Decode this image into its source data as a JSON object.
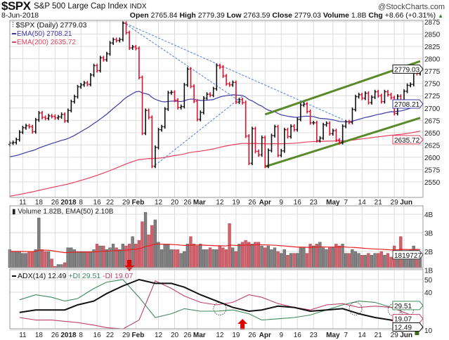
{
  "header": {
    "symbol": "$SPX",
    "name": "S&P 500 Large Cap Index",
    "exchange": "INDX",
    "brand": "@StockCharts.com",
    "date": "8-Jun-2018",
    "open_label": "Open",
    "open": "2765.84",
    "high_label": "High",
    "high": "2779.39",
    "low_label": "Low",
    "low": "2763.59",
    "close_label": "Close",
    "close": "2779.03",
    "volume_label": "Volume",
    "volume": "1.8B",
    "chg_label": "Chg",
    "chg": "+8.66 (+0.31%)",
    "chg_icon": "triangle-up-icon"
  },
  "chart_data": {
    "type": "ohlc",
    "colors": {
      "up": "#111111",
      "down": "#e0112b",
      "ema50": "#3b3ba8",
      "ema200": "#e84060",
      "trend_green": "#5a8a2a",
      "trend_blue": "#4a7fd8",
      "plus_di": "#3d8a5a",
      "minus_di": "#c0406a",
      "adx": "#111111",
      "vol_up": "#808080",
      "vol_down": "#d0606a"
    },
    "legend": {
      "price": "$SPX (Daily) 2779.03",
      "ema50": "EMA(50) 2708.21",
      "ema200": "EMA(200) 2635.72",
      "volume": "Volume 1.82B, EMA(50) 2.10B",
      "adx": "ADX(14) 12.49",
      "plus_di": "+DI 29.51",
      "minus_di": "-DI 19.07"
    },
    "price_axis": {
      "ticks": [
        2875,
        2850,
        2825,
        2800,
        2775,
        2750,
        2725,
        2700,
        2675,
        2650,
        2625,
        2600,
        2575,
        2550
      ],
      "range": [
        2535,
        2885
      ]
    },
    "price_tags": {
      "close": "2779.03",
      "ema50": "2708.21",
      "ema200": "2635.72"
    },
    "volume_axis": {
      "ticks": [
        "4B",
        "3B",
        "2B",
        "1B"
      ],
      "tag": "1819727"
    },
    "adx_axis": {
      "ticks": [
        50,
        40,
        10
      ],
      "tags": {
        "plus_di": "29.51",
        "minus_di": "19.07",
        "adx": "12.49"
      }
    },
    "x_ticks": [
      {
        "label": "11",
        "date": "2017-12-11"
      },
      {
        "label": "18",
        "date": "2017-12-18"
      },
      {
        "label": "26",
        "date": "2017-12-26"
      },
      {
        "label": "2018",
        "date": "2018-01-02",
        "bold": true
      },
      {
        "label": "8",
        "date": "2018-01-08"
      },
      {
        "label": "16",
        "date": "2018-01-16"
      },
      {
        "label": "22",
        "date": "2018-01-22"
      },
      {
        "label": "29",
        "date": "2018-01-29"
      },
      {
        "label": "Feb",
        "date": "2018-02-01",
        "bold": true
      },
      {
        "label": "12",
        "date": "2018-02-12"
      },
      {
        "label": "20",
        "date": "2018-02-20"
      },
      {
        "label": "26",
        "date": "2018-02-26"
      },
      {
        "label": "Mar",
        "date": "2018-03-01",
        "bold": true
      },
      {
        "label": "12",
        "date": "2018-03-12"
      },
      {
        "label": "19",
        "date": "2018-03-19"
      },
      {
        "label": "26",
        "date": "2018-03-26"
      },
      {
        "label": "Apr",
        "date": "2018-04-02",
        "bold": true
      },
      {
        "label": "9",
        "date": "2018-04-09"
      },
      {
        "label": "16",
        "date": "2018-04-16"
      },
      {
        "label": "23",
        "date": "2018-04-23"
      },
      {
        "label": "May",
        "date": "2018-05-01",
        "bold": true
      },
      {
        "label": "7",
        "date": "2018-05-07"
      },
      {
        "label": "14",
        "date": "2018-05-14"
      },
      {
        "label": "21",
        "date": "2018-05-21"
      },
      {
        "label": "29",
        "date": "2018-05-29"
      },
      {
        "label": "Jun",
        "date": "2018-06-01",
        "bold": true
      }
    ],
    "months": [
      {
        "month": "2017-12",
        "days": [
          5,
          6,
          7,
          8,
          11,
          12,
          13,
          14,
          15,
          18,
          19,
          20,
          21,
          22,
          26,
          27,
          28,
          29
        ],
        "close": [
          2629,
          2630,
          2636,
          2651,
          2660,
          2664,
          2662,
          2652,
          2676,
          2690,
          2681,
          2679,
          2684,
          2683,
          2680,
          2682,
          2687,
          2674
        ],
        "volume": [
          2.1,
          2.0,
          2.0,
          2.0,
          1.9,
          1.9,
          2.0,
          2.0,
          2.1,
          3.8,
          2.1,
          2.0,
          2.0,
          1.6,
          1.2,
          1.3,
          1.3,
          1.4
        ]
      },
      {
        "month": "2018-01",
        "days": [
          2,
          3,
          4,
          5,
          8,
          9,
          10,
          11,
          12,
          16,
          17,
          18,
          19,
          22,
          23,
          24,
          25,
          26,
          29,
          30,
          31
        ],
        "close": [
          2695,
          2713,
          2723,
          2743,
          2747,
          2751,
          2748,
          2767,
          2786,
          2776,
          2802,
          2798,
          2810,
          2832,
          2839,
          2837,
          2839,
          2872,
          2853,
          2822,
          2824
        ],
        "volume": [
          2.2,
          2.2,
          2.1,
          2.0,
          2.0,
          2.0,
          2.0,
          2.0,
          2.1,
          2.4,
          2.3,
          2.3,
          2.1,
          2.2,
          2.4,
          2.2,
          2.1,
          2.4,
          2.3,
          2.4,
          2.8
        ]
      },
      {
        "month": "2018-02",
        "days": [
          1,
          2,
          5,
          6,
          7,
          8,
          9,
          12,
          13,
          14,
          15,
          16,
          20,
          21,
          22,
          23,
          26,
          27,
          28
        ],
        "close": [
          2821,
          2762,
          2649,
          2695,
          2681,
          2582,
          2620,
          2656,
          2662,
          2698,
          2731,
          2732,
          2716,
          2701,
          2703,
          2747,
          2779,
          2744,
          2714
        ],
        "volume": [
          2.4,
          2.6,
          3.6,
          4.1,
          2.9,
          3.4,
          3.7,
          2.5,
          2.1,
          2.4,
          2.4,
          2.1,
          2.1,
          2.1,
          1.9,
          2.0,
          2.4,
          2.8,
          2.4
        ]
      },
      {
        "month": "2018-03",
        "days": [
          1,
          2,
          5,
          6,
          7,
          8,
          9,
          12,
          13,
          14,
          15,
          16,
          19,
          20,
          21,
          22,
          23,
          26,
          27,
          28,
          29
        ],
        "close": [
          2677,
          2691,
          2720,
          2728,
          2726,
          2739,
          2786,
          2783,
          2765,
          2749,
          2747,
          2752,
          2712,
          2717,
          2711,
          2643,
          2588,
          2658,
          2612,
          2605,
          2640
        ],
        "volume": [
          2.3,
          2.4,
          2.1,
          2.1,
          2.2,
          2.1,
          2.1,
          2.3,
          2.2,
          2.1,
          3.5,
          2.2,
          2.0,
          2.4,
          2.5,
          2.6,
          2.5,
          2.4,
          2.5,
          2.5,
          2.3
        ]
      },
      {
        "month": "2018-04",
        "days": [
          2,
          3,
          4,
          5,
          6,
          9,
          10,
          11,
          12,
          13,
          16,
          17,
          18,
          19,
          20,
          23,
          24,
          25,
          26,
          27,
          30
        ],
        "close": [
          2582,
          2614,
          2644,
          2662,
          2604,
          2613,
          2656,
          2642,
          2663,
          2656,
          2677,
          2706,
          2708,
          2693,
          2670,
          2670,
          2634,
          2639,
          2666,
          2669,
          2648
        ],
        "volume": [
          2.2,
          2.3,
          2.1,
          2.2,
          2.0,
          1.9,
          2.1,
          1.8,
          1.9,
          1.9,
          1.9,
          2.2,
          2.2,
          1.9,
          2.4,
          2.3,
          2.4,
          2.5,
          2.2,
          2.1,
          2.2
        ]
      },
      {
        "month": "2018-05",
        "days": [
          1,
          2,
          3,
          4,
          7,
          8,
          9,
          10,
          11,
          14,
          15,
          16,
          17,
          18,
          21,
          22,
          23,
          24,
          25,
          29,
          30,
          31
        ],
        "close": [
          2654,
          2635,
          2630,
          2663,
          2672,
          2671,
          2697,
          2723,
          2727,
          2720,
          2730,
          2711,
          2722,
          2733,
          2725,
          2713,
          2733,
          2727,
          2721,
          2689,
          2724,
          2705
        ],
        "volume": [
          2.2,
          2.4,
          2.3,
          2.4,
          1.9,
          1.9,
          2.1,
          2.0,
          1.9,
          1.8,
          1.8,
          1.9,
          1.8,
          1.9,
          1.9,
          2.0,
          1.8,
          1.9,
          1.7,
          2.3,
          1.9,
          2.8
        ]
      },
      {
        "month": "2018-06",
        "days": [
          1,
          4,
          5,
          6,
          7,
          8
        ],
        "close": [
          2734,
          2746,
          2748,
          2772,
          2770,
          2779
        ],
        "volume": [
          2.0,
          2.0,
          2.1,
          2.3,
          2.1,
          1.82
        ]
      }
    ],
    "adx": {
      "dates": [
        "2017-12-08",
        "2017-12-15",
        "2017-12-22",
        "2017-12-29",
        "2018-01-05",
        "2018-01-12",
        "2018-01-19",
        "2018-01-26",
        "2018-02-02",
        "2018-02-09",
        "2018-02-16",
        "2018-02-23",
        "2018-03-02",
        "2018-03-09",
        "2018-03-16",
        "2018-03-23",
        "2018-03-29",
        "2018-04-06",
        "2018-04-13",
        "2018-04-20",
        "2018-04-27",
        "2018-05-04",
        "2018-05-11",
        "2018-05-18",
        "2018-05-25",
        "2018-06-01",
        "2018-06-08"
      ],
      "adx": [
        24,
        26,
        26,
        26,
        30,
        33,
        39,
        45,
        50,
        47,
        47,
        44,
        38,
        33,
        28,
        25,
        26,
        29,
        28,
        25,
        26,
        27,
        23,
        20,
        18,
        16,
        12.49
      ],
      "plus_di": [
        34,
        38,
        36,
        33,
        35,
        43,
        48,
        50,
        36,
        20,
        23,
        27,
        25,
        25,
        26,
        23,
        18,
        19,
        20,
        22,
        26,
        30,
        33,
        32,
        28,
        31,
        29.51
      ],
      "minus_di": [
        20,
        18,
        18,
        17,
        16,
        14,
        12,
        11,
        18,
        49,
        43,
        37,
        32,
        30,
        32,
        38,
        36,
        31,
        28,
        26,
        30,
        31,
        28,
        29,
        28,
        24,
        19.07
      ]
    },
    "trendlines": [
      {
        "color": "green",
        "style": "solid",
        "from": {
          "date": "2018-04-02",
          "price": 2687
        },
        "to": {
          "date": "2018-06-08",
          "price": 2795
        }
      },
      {
        "color": "green",
        "style": "solid",
        "from": {
          "date": "2018-04-02",
          "price": 2581
        },
        "to": {
          "date": "2018-06-08",
          "price": 2680
        }
      },
      {
        "color": "blue",
        "style": "dashed",
        "from": {
          "date": "2018-01-26",
          "price": 2874
        },
        "to": {
          "date": "2018-05-04",
          "price": 2677
        }
      },
      {
        "color": "blue",
        "style": "dashed",
        "from": {
          "date": "2018-01-26",
          "price": 2874
        },
        "to": {
          "date": "2018-03-21",
          "price": 2710
        }
      },
      {
        "color": "blue",
        "style": "dashed",
        "from": {
          "date": "2018-02-09",
          "price": 2584
        },
        "to": {
          "date": "2018-03-21",
          "price": 2724
        }
      }
    ],
    "markers": [
      {
        "type": "arrow-down",
        "color": "#e00000",
        "date": "2018-01-30",
        "panel": "adx"
      },
      {
        "type": "arrow-up",
        "color": "#e00000",
        "date": "2018-03-21",
        "panel": "adx"
      },
      {
        "type": "arrow-up",
        "color": "#3a6a1a",
        "date": "2018-06-07",
        "panel": "adx"
      },
      {
        "type": "dotted-circle",
        "date": "2018-03-12",
        "value": 27
      },
      {
        "type": "dotted-circle",
        "date": "2018-05-10",
        "value": 27
      },
      {
        "type": "dotted-circle",
        "date": "2018-05-29",
        "value": 26
      },
      {
        "type": "dotted-circle",
        "date": "2018-06-04",
        "value": 26
      }
    ]
  }
}
